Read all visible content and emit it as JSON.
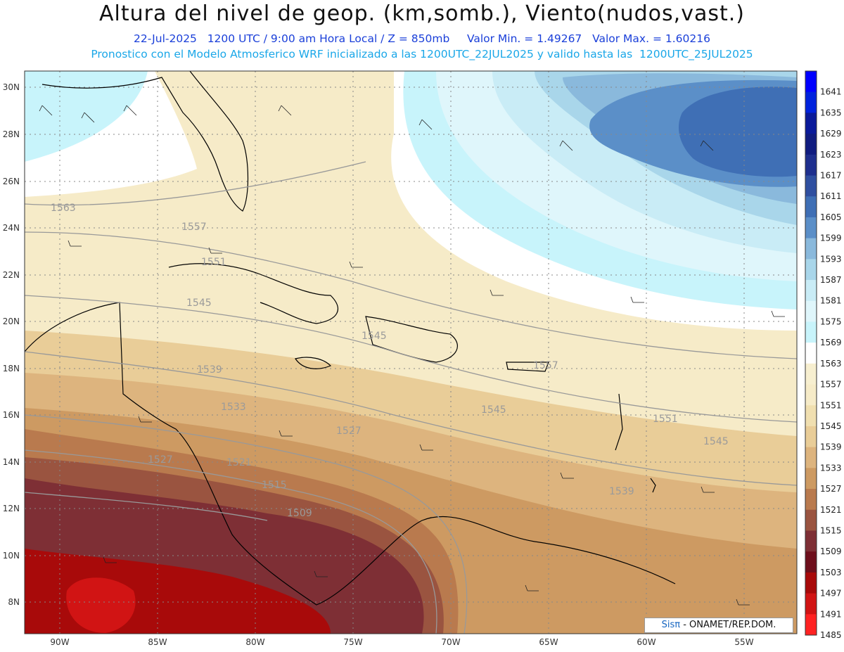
{
  "title": "Altura del nivel de geop. (km,somb.), Viento(nudos,vast.)",
  "subtitle_line1": "22-Jul-2025   1200 UTC / 9:00 am Hora Local / Z = 850mb     Valor Min. = 1.49267   Valor Max. = 1.60216",
  "subtitle_line2": "Pronostico con el Modelo Atmosferico WRF inicializado a las 1200UTC_22JUL2025 y valido hasta las  1200UTC_25JUL2025",
  "lat_labels": [
    "30N",
    "28N",
    "26N",
    "24N",
    "22N",
    "20N",
    "18N",
    "16N",
    "14N",
    "12N",
    "10N",
    "8N"
  ],
  "lon_labels": [
    "90W",
    "85W",
    "80W",
    "75W",
    "70W",
    "65W",
    "60W",
    "55W"
  ],
  "colorbar_values": [
    "1641",
    "1635",
    "1629",
    "1623",
    "1617",
    "1611",
    "1605",
    "1599",
    "1593",
    "1587",
    "1581",
    "1575",
    "1569",
    "1563",
    "1557",
    "1551",
    "1545",
    "1539",
    "1533",
    "1527",
    "1521",
    "1515",
    "1509",
    "1503",
    "1497",
    "1491",
    "1485"
  ],
  "colorbar_colors": [
    "#0000ff",
    "#0022dd",
    "#0a1a9a",
    "#101c80",
    "#1e2f8e",
    "#2f4fa0",
    "#3f6fb5",
    "#5b8fc8",
    "#8ab9dc",
    "#a9d6ea",
    "#c9ecf6",
    "#dff6fb",
    "#c8f4fb",
    "#ffffff",
    "#f7efd0",
    "#f6ebc8",
    "#f0dfb0",
    "#e9cd98",
    "#ddb47e",
    "#cd9a62",
    "#b97a4e",
    "#9a5440",
    "#7e2f35",
    "#6e0f1c",
    "#a80a0a",
    "#d11414",
    "#ff2222"
  ],
  "contour_labels": [
    {
      "text": "1563"
    },
    {
      "text": "1557"
    },
    {
      "text": "1551"
    },
    {
      "text": "1545"
    },
    {
      "text": "1545"
    },
    {
      "text": "1539"
    },
    {
      "text": "1533"
    },
    {
      "text": "1527"
    },
    {
      "text": "1521"
    },
    {
      "text": "1515"
    },
    {
      "text": "1509"
    },
    {
      "text": "1545"
    },
    {
      "text": "1551"
    },
    {
      "text": "1545"
    },
    {
      "text": "1539"
    },
    {
      "text": "1527"
    },
    {
      "text": "1557"
    }
  ],
  "credit": {
    "logo": "Sisπ",
    "text": " - ONAMET/REP.DOM."
  }
}
